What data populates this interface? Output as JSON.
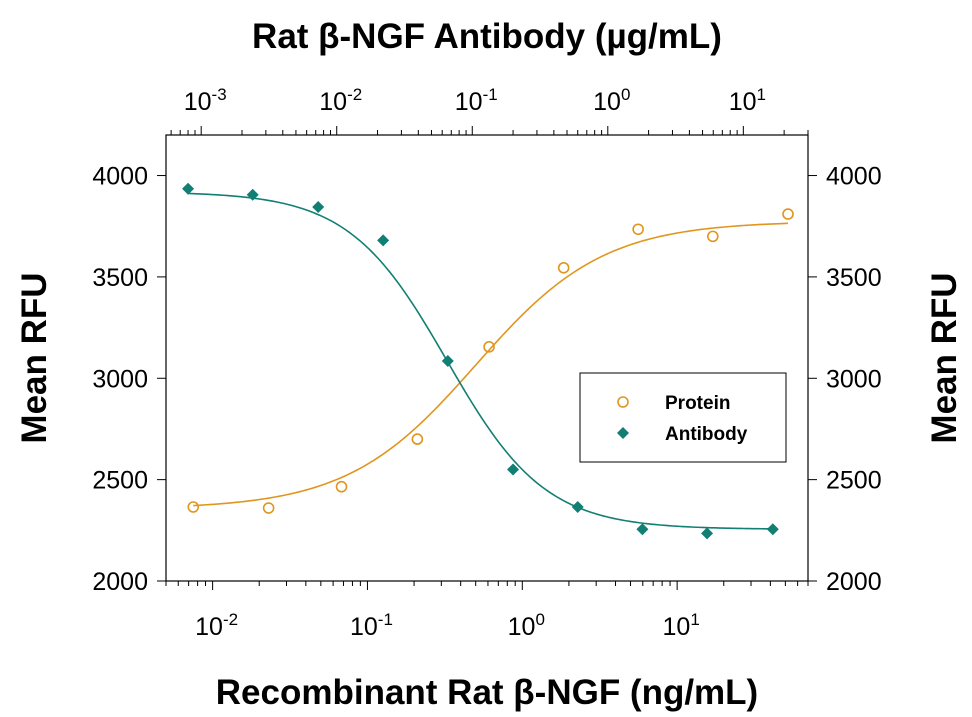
{
  "chart_data": {
    "type": "scatter",
    "title": "",
    "x_bottom": {
      "label": "Recombinant Rat β-NGF (ng/mL)",
      "scale": "log",
      "range": [
        0.005,
        70
      ],
      "major_ticks": [
        0.01,
        0.1,
        1,
        10
      ],
      "tick_labels": [
        {
          "base": "10",
          "exp": "-2"
        },
        {
          "base": "10",
          "exp": "-1"
        },
        {
          "base": "10",
          "exp": "0"
        },
        {
          "base": "10",
          "exp": "1"
        }
      ]
    },
    "x_top": {
      "label": "Rat β-NGF Antibody (µg/mL)",
      "scale": "log",
      "range": [
        0.00055,
        30
      ],
      "major_ticks": [
        0.001,
        0.01,
        0.1,
        1,
        10
      ],
      "tick_labels": [
        {
          "base": "10",
          "exp": "-3"
        },
        {
          "base": "10",
          "exp": "-2"
        },
        {
          "base": "10",
          "exp": "-1"
        },
        {
          "base": "10",
          "exp": "0"
        },
        {
          "base": "10",
          "exp": "1"
        }
      ]
    },
    "y_left": {
      "label": "Mean RFU",
      "range": [
        2000,
        4200
      ],
      "ticks": [
        2000,
        2500,
        3000,
        3500,
        4000
      ],
      "tick_labels": [
        "2000",
        "2500",
        "3000",
        "3500",
        "4000"
      ]
    },
    "y_right": {
      "label": "Mean RFU",
      "range": [
        2000,
        4200
      ],
      "ticks": [
        2000,
        2500,
        3000,
        3500,
        4000
      ],
      "tick_labels": [
        "2000",
        "2500",
        "3000",
        "3500",
        "4000"
      ]
    },
    "legend": {
      "placement": "center-right",
      "entries": [
        {
          "label": "Protein",
          "marker": "open-circle",
          "color": "#E0961E"
        },
        {
          "label": "Antibody",
          "marker": "filled-diamond",
          "color": "#127F74"
        }
      ]
    },
    "series": [
      {
        "name": "Protein",
        "axis": "bottom",
        "color": "#E0961E",
        "marker": "open-circle",
        "points": [
          {
            "x": 0.0075,
            "y": 2365
          },
          {
            "x": 0.023,
            "y": 2360
          },
          {
            "x": 0.068,
            "y": 2465
          },
          {
            "x": 0.21,
            "y": 2700
          },
          {
            "x": 0.61,
            "y": 3155
          },
          {
            "x": 1.85,
            "y": 3545
          },
          {
            "x": 5.6,
            "y": 3735
          },
          {
            "x": 17,
            "y": 3700
          },
          {
            "x": 52,
            "y": 3810
          }
        ],
        "fit": {
          "model": "4PL",
          "bottom": 2355,
          "top": 3775,
          "ec50": 0.5,
          "hill": 1.05
        }
      },
      {
        "name": "Antibody",
        "axis": "top",
        "color": "#127F74",
        "marker": "filled-diamond",
        "points": [
          {
            "x": 0.0008,
            "y": 3935
          },
          {
            "x": 0.0024,
            "y": 3905
          },
          {
            "x": 0.0073,
            "y": 3845
          },
          {
            "x": 0.022,
            "y": 3680
          },
          {
            "x": 0.066,
            "y": 3085
          },
          {
            "x": 0.2,
            "y": 2550
          },
          {
            "x": 0.6,
            "y": 2365
          },
          {
            "x": 1.8,
            "y": 2255
          },
          {
            "x": 5.4,
            "y": 2235
          },
          {
            "x": 16.5,
            "y": 2255
          }
        ],
        "fit": {
          "model": "4PL",
          "bottom": 2255,
          "top": 3920,
          "ec50": 0.065,
          "hill": 1.2
        }
      }
    ]
  }
}
